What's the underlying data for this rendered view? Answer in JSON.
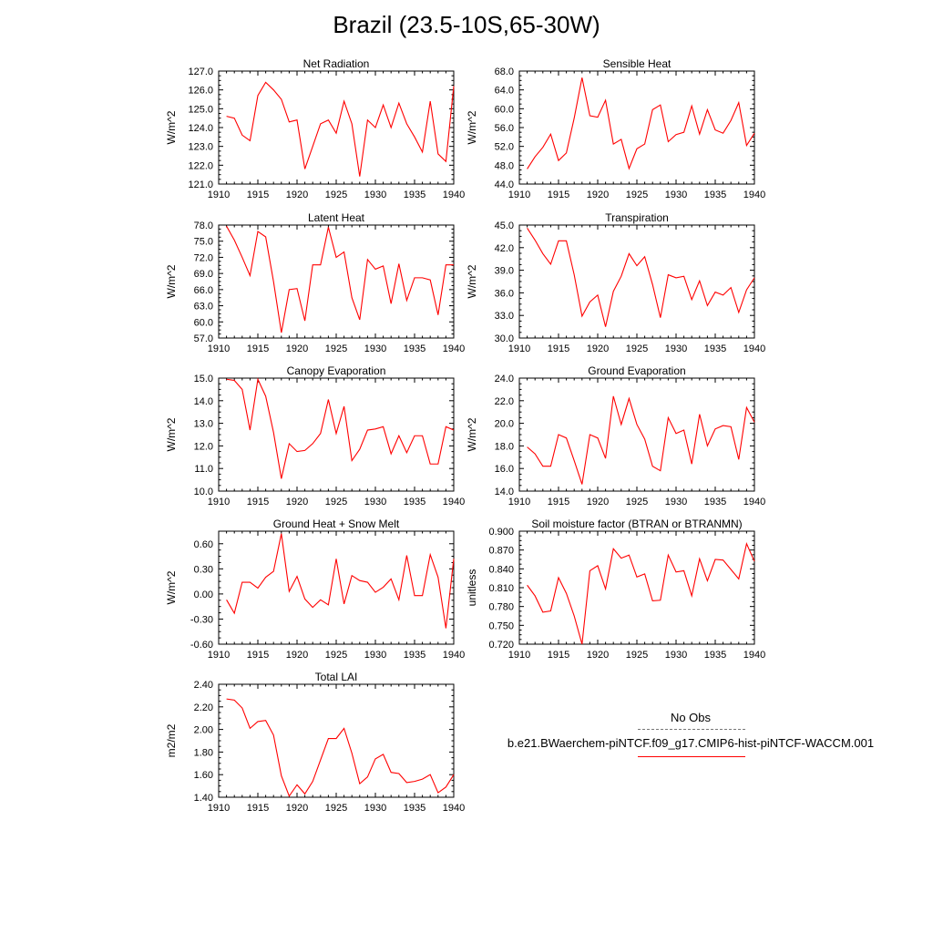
{
  "figure_title": "Brazil (23.5-10S,65-30W)",
  "legend": {
    "obs_label": "No Obs",
    "model_label": "b.e21.BWaerchem-piNTCF.f09_g17.CMIP6-hist-piNTCF-WACCM.001",
    "model_color": "#ff0000",
    "obs_color": "#777777"
  },
  "chart_data": [
    {
      "type": "line",
      "title": "Net Radiation",
      "ylabel": "W/m^2",
      "xlim": [
        1910,
        1940
      ],
      "ylim": [
        121,
        127
      ],
      "xticks": [
        1910,
        1915,
        1920,
        1925,
        1930,
        1935,
        1940
      ],
      "yticks": [
        "127.0",
        "126.0",
        "125.0",
        "124.0",
        "123.0",
        "122.0",
        "121.0"
      ],
      "series": [
        {
          "color": "#ff0000",
          "x": [
            1911,
            1912,
            1913,
            1914,
            1915,
            1916,
            1917,
            1918,
            1919,
            1920,
            1921,
            1922,
            1923,
            1924,
            1925,
            1926,
            1927,
            1928,
            1929,
            1930,
            1931,
            1932,
            1933,
            1934,
            1935,
            1936,
            1937,
            1938,
            1939,
            1940
          ],
          "y": [
            124.6,
            124.5,
            123.6,
            123.3,
            125.7,
            126.4,
            126.0,
            125.5,
            124.3,
            124.4,
            121.8,
            123.0,
            124.2,
            124.4,
            123.7,
            125.4,
            124.2,
            121.4,
            124.4,
            124.0,
            125.2,
            124.0,
            125.3,
            124.2,
            123.5,
            122.7,
            125.4,
            122.6,
            122.2,
            126.2
          ]
        }
      ]
    },
    {
      "type": "line",
      "title": "Sensible Heat",
      "ylabel": "W/m^2",
      "xlim": [
        1910,
        1940
      ],
      "ylim": [
        44,
        68
      ],
      "xticks": [
        1910,
        1915,
        1920,
        1925,
        1930,
        1935,
        1940
      ],
      "yticks": [
        "68.0",
        "64.0",
        "60.0",
        "56.0",
        "52.0",
        "48.0",
        "44.0"
      ],
      "series": [
        {
          "color": "#ff0000",
          "x": [
            1911,
            1912,
            1913,
            1914,
            1915,
            1916,
            1917,
            1918,
            1919,
            1920,
            1921,
            1922,
            1923,
            1924,
            1925,
            1926,
            1927,
            1928,
            1929,
            1930,
            1931,
            1932,
            1933,
            1934,
            1935,
            1936,
            1937,
            1938,
            1939,
            1940
          ],
          "y": [
            47.2,
            49.8,
            51.8,
            54.6,
            49.0,
            50.6,
            58.0,
            66.6,
            58.5,
            58.2,
            61.8,
            52.5,
            53.5,
            47.3,
            51.5,
            52.5,
            59.8,
            60.8,
            53.0,
            54.5,
            55.0,
            60.6,
            54.6,
            59.8,
            55.5,
            54.8,
            57.5,
            61.3,
            52.2,
            54.8
          ]
        }
      ]
    },
    {
      "type": "line",
      "title": "Latent Heat",
      "ylabel": "W/m^2",
      "xlim": [
        1910,
        1940
      ],
      "ylim": [
        57,
        78
      ],
      "xticks": [
        1910,
        1915,
        1920,
        1925,
        1930,
        1935,
        1940
      ],
      "yticks": [
        "78.0",
        "75.0",
        "72.0",
        "69.0",
        "66.0",
        "63.0",
        "60.0",
        "57.0"
      ],
      "series": [
        {
          "color": "#ff0000",
          "x": [
            1911,
            1912,
            1913,
            1914,
            1915,
            1916,
            1917,
            1918,
            1919,
            1920,
            1921,
            1922,
            1923,
            1924,
            1925,
            1926,
            1927,
            1928,
            1929,
            1930,
            1931,
            1932,
            1933,
            1934,
            1935,
            1936,
            1937,
            1938,
            1939,
            1940
          ],
          "y": [
            77.8,
            75.2,
            72.0,
            68.6,
            76.8,
            75.8,
            67.5,
            58.0,
            66.0,
            66.2,
            60.2,
            70.6,
            70.6,
            77.6,
            72.0,
            73.0,
            64.5,
            60.4,
            71.6,
            69.8,
            70.4,
            63.4,
            70.8,
            64.0,
            68.2,
            68.2,
            67.8,
            61.3,
            70.6,
            70.6
          ]
        }
      ]
    },
    {
      "type": "line",
      "title": "Transpiration",
      "ylabel": "W/m^2",
      "xlim": [
        1910,
        1940
      ],
      "ylim": [
        30,
        45
      ],
      "xticks": [
        1910,
        1915,
        1920,
        1925,
        1930,
        1935,
        1940
      ],
      "yticks": [
        "45.0",
        "42.0",
        "39.0",
        "36.0",
        "33.0",
        "30.0"
      ],
      "series": [
        {
          "color": "#ff0000",
          "x": [
            1911,
            1912,
            1913,
            1914,
            1915,
            1916,
            1917,
            1918,
            1919,
            1920,
            1921,
            1922,
            1923,
            1924,
            1925,
            1926,
            1927,
            1928,
            1929,
            1930,
            1931,
            1932,
            1933,
            1934,
            1935,
            1936,
            1937,
            1938,
            1939,
            1940
          ],
          "y": [
            44.6,
            43.0,
            41.2,
            39.8,
            42.9,
            42.9,
            38.4,
            32.9,
            34.8,
            35.7,
            31.5,
            36.2,
            38.2,
            41.2,
            39.6,
            40.8,
            37.1,
            32.7,
            38.4,
            38.0,
            38.2,
            35.1,
            37.6,
            34.3,
            36.1,
            35.7,
            36.7,
            33.4,
            36.4,
            38.0
          ]
        }
      ]
    },
    {
      "type": "line",
      "title": "Canopy Evaporation",
      "ylabel": "W/m^2",
      "xlim": [
        1910,
        1940
      ],
      "ylim": [
        10,
        15
      ],
      "xticks": [
        1910,
        1915,
        1920,
        1925,
        1930,
        1935,
        1940
      ],
      "yticks": [
        "15.0",
        "14.0",
        "13.0",
        "12.0",
        "11.0",
        "10.0"
      ],
      "series": [
        {
          "color": "#ff0000",
          "x": [
            1911,
            1912,
            1913,
            1914,
            1915,
            1916,
            1917,
            1918,
            1919,
            1920,
            1921,
            1922,
            1923,
            1924,
            1925,
            1926,
            1927,
            1928,
            1929,
            1930,
            1931,
            1932,
            1933,
            1934,
            1935,
            1936,
            1937,
            1938,
            1939,
            1940
          ],
          "y": [
            14.95,
            14.9,
            14.5,
            12.7,
            14.95,
            14.2,
            12.6,
            10.55,
            12.1,
            11.75,
            11.8,
            12.1,
            12.55,
            14.05,
            12.55,
            13.75,
            11.35,
            11.85,
            12.7,
            12.75,
            12.85,
            11.65,
            12.45,
            11.7,
            12.45,
            12.45,
            11.2,
            11.2,
            12.85,
            12.7
          ]
        }
      ]
    },
    {
      "type": "line",
      "title": "Ground Evaporation",
      "ylabel": "W/m^2",
      "xlim": [
        1910,
        1940
      ],
      "ylim": [
        14,
        24
      ],
      "xticks": [
        1910,
        1915,
        1920,
        1925,
        1930,
        1935,
        1940
      ],
      "yticks": [
        "24.0",
        "22.0",
        "20.0",
        "18.0",
        "16.0",
        "14.0"
      ],
      "series": [
        {
          "color": "#ff0000",
          "x": [
            1911,
            1912,
            1913,
            1914,
            1915,
            1916,
            1917,
            1918,
            1919,
            1920,
            1921,
            1922,
            1923,
            1924,
            1925,
            1926,
            1927,
            1928,
            1929,
            1930,
            1931,
            1932,
            1933,
            1934,
            1935,
            1936,
            1937,
            1938,
            1939,
            1940
          ],
          "y": [
            17.9,
            17.3,
            16.2,
            16.2,
            19.0,
            18.7,
            16.7,
            14.6,
            19.0,
            18.7,
            16.9,
            22.4,
            19.9,
            22.2,
            19.9,
            18.6,
            16.2,
            15.8,
            20.5,
            19.1,
            19.4,
            16.4,
            20.8,
            18.0,
            19.5,
            19.8,
            19.7,
            16.8,
            21.4,
            20.1
          ]
        }
      ]
    },
    {
      "type": "line",
      "title": "Ground Heat + Snow Melt",
      "ylabel": "W/m^2",
      "xlim": [
        1910,
        1940
      ],
      "ylim": [
        -0.6,
        0.75
      ],
      "xticks": [
        1910,
        1915,
        1920,
        1925,
        1930,
        1935,
        1940
      ],
      "yticks": [
        "0.60",
        "0.30",
        "0.00",
        "-0.30",
        "-0.60"
      ],
      "series": [
        {
          "color": "#ff0000",
          "x": [
            1911,
            1912,
            1913,
            1914,
            1915,
            1916,
            1917,
            1918,
            1919,
            1920,
            1921,
            1922,
            1923,
            1924,
            1925,
            1926,
            1927,
            1928,
            1929,
            1930,
            1931,
            1932,
            1933,
            1934,
            1935,
            1936,
            1937,
            1938,
            1939,
            1940
          ],
          "y": [
            -0.07,
            -0.23,
            0.14,
            0.14,
            0.07,
            0.2,
            0.27,
            0.72,
            0.03,
            0.21,
            -0.06,
            -0.16,
            -0.07,
            -0.13,
            0.42,
            -0.12,
            0.22,
            0.16,
            0.14,
            0.02,
            0.08,
            0.18,
            -0.07,
            0.46,
            -0.02,
            -0.02,
            0.47,
            0.2,
            -0.41,
            0.42
          ]
        }
      ]
    },
    {
      "type": "line",
      "title": "Soil moisture factor (BTRAN or BTRANMN)",
      "ylabel": "unitless",
      "xlim": [
        1910,
        1940
      ],
      "ylim": [
        0.72,
        0.9
      ],
      "xticks": [
        1910,
        1915,
        1920,
        1925,
        1930,
        1935,
        1940
      ],
      "yticks": [
        "0.900",
        "0.870",
        "0.840",
        "0.810",
        "0.780",
        "0.750",
        "0.720"
      ],
      "series": [
        {
          "color": "#ff0000",
          "x": [
            1911,
            1912,
            1913,
            1914,
            1915,
            1916,
            1917,
            1918,
            1919,
            1920,
            1921,
            1922,
            1923,
            1924,
            1925,
            1926,
            1927,
            1928,
            1929,
            1930,
            1931,
            1932,
            1933,
            1934,
            1935,
            1936,
            1937,
            1938,
            1939,
            1940
          ],
          "y": [
            0.814,
            0.797,
            0.771,
            0.773,
            0.826,
            0.801,
            0.765,
            0.72,
            0.837,
            0.845,
            0.808,
            0.872,
            0.857,
            0.862,
            0.827,
            0.832,
            0.789,
            0.79,
            0.862,
            0.835,
            0.837,
            0.797,
            0.856,
            0.821,
            0.855,
            0.854,
            0.839,
            0.824,
            0.88,
            0.852
          ]
        }
      ]
    },
    {
      "type": "line",
      "title": "Total LAI",
      "ylabel": "m2/m2",
      "xlim": [
        1910,
        1940
      ],
      "ylim": [
        1.4,
        2.4
      ],
      "xticks": [
        1910,
        1915,
        1920,
        1925,
        1930,
        1935,
        1940
      ],
      "yticks": [
        "2.40",
        "2.20",
        "2.00",
        "1.80",
        "1.60",
        "1.40"
      ],
      "series": [
        {
          "color": "#ff0000",
          "x": [
            1911,
            1912,
            1913,
            1914,
            1915,
            1916,
            1917,
            1918,
            1919,
            1920,
            1921,
            1922,
            1923,
            1924,
            1925,
            1926,
            1927,
            1928,
            1929,
            1930,
            1931,
            1932,
            1933,
            1934,
            1935,
            1936,
            1937,
            1938,
            1939,
            1940
          ],
          "y": [
            2.27,
            2.26,
            2.19,
            2.01,
            2.07,
            2.08,
            1.95,
            1.59,
            1.41,
            1.51,
            1.43,
            1.54,
            1.73,
            1.92,
            1.92,
            2.01,
            1.79,
            1.52,
            1.58,
            1.74,
            1.78,
            1.62,
            1.61,
            1.53,
            1.54,
            1.56,
            1.6,
            1.44,
            1.49,
            1.6
          ]
        }
      ]
    }
  ]
}
